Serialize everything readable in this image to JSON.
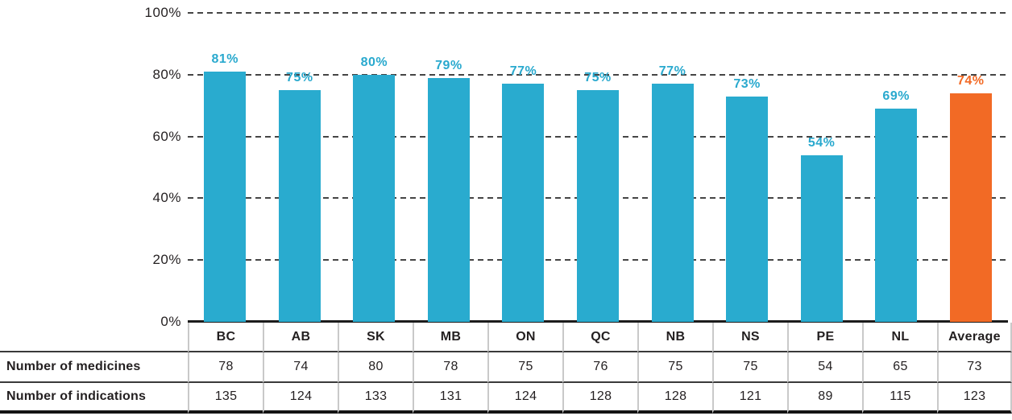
{
  "colors": {
    "bar": "#29abcf",
    "bar_highlight": "#f26a25",
    "value_label": "#29a9ce",
    "value_label_highlight": "#f26a25",
    "axis_text": "#231f20",
    "gridline": "#454545",
    "baseline": "#1c1c1c",
    "table_divider": "#c9c9c9",
    "table_rule": "#3a3a3a"
  },
  "chart_data": {
    "type": "bar",
    "title": "",
    "xlabel": "",
    "ylabel": "",
    "categories": [
      "BC",
      "AB",
      "SK",
      "MB",
      "ON",
      "QC",
      "NB",
      "NS",
      "PE",
      "NL",
      "Average"
    ],
    "values": [
      81,
      75,
      80,
      79,
      77,
      75,
      77,
      73,
      54,
      69,
      74
    ],
    "value_labels": [
      "81%",
      "75%",
      "80%",
      "79%",
      "77%",
      "75%",
      "77%",
      "73%",
      "54%",
      "69%",
      "74%"
    ],
    "highlight_index": 10,
    "ylim": [
      0,
      100
    ],
    "y_ticks": [
      {
        "label": "100%",
        "value": 100
      },
      {
        "label": "80%",
        "value": 80
      },
      {
        "label": "60%",
        "value": 60
      },
      {
        "label": "40%",
        "value": 40
      },
      {
        "label": "20%",
        "value": 20
      },
      {
        "label": "0%",
        "value": 0
      }
    ],
    "grid": "horizontal-dashed",
    "legend": "none",
    "table": {
      "rows": [
        {
          "label": "Number of medicines",
          "values": [
            78,
            74,
            80,
            78,
            75,
            76,
            75,
            75,
            54,
            65,
            73
          ]
        },
        {
          "label": "Number of indications",
          "values": [
            135,
            124,
            133,
            131,
            124,
            128,
            128,
            121,
            89,
            115,
            123
          ]
        }
      ]
    }
  }
}
